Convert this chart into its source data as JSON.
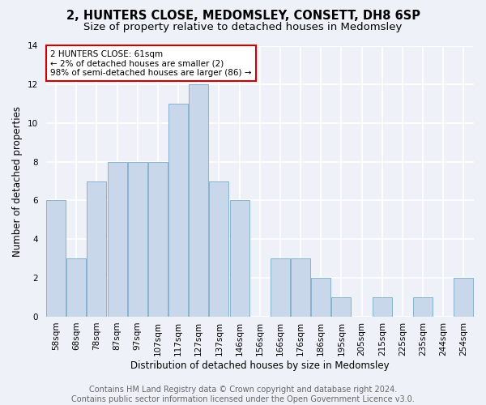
{
  "title": "2, HUNTERS CLOSE, MEDOMSLEY, CONSETT, DH8 6SP",
  "subtitle": "Size of property relative to detached houses in Medomsley",
  "xlabel": "Distribution of detached houses by size in Medomsley",
  "ylabel": "Number of detached properties",
  "bar_labels": [
    "58sqm",
    "68sqm",
    "78sqm",
    "87sqm",
    "97sqm",
    "107sqm",
    "117sqm",
    "127sqm",
    "137sqm",
    "146sqm",
    "156sqm",
    "166sqm",
    "176sqm",
    "186sqm",
    "195sqm",
    "205sqm",
    "215sqm",
    "225sqm",
    "235sqm",
    "244sqm",
    "254sqm"
  ],
  "bar_values": [
    6,
    3,
    7,
    8,
    8,
    8,
    11,
    12,
    7,
    6,
    0,
    3,
    3,
    2,
    1,
    0,
    1,
    0,
    1,
    0,
    2
  ],
  "bar_color": "#c8d8ea",
  "bar_edge_color": "#7aaac8",
  "annotation_box_text": "2 HUNTERS CLOSE: 61sqm\n← 2% of detached houses are smaller (2)\n98% of semi-detached houses are larger (86) →",
  "annotation_box_color": "#ffffff",
  "annotation_box_edge_color": "#cc0000",
  "footer_text": "Contains HM Land Registry data © Crown copyright and database right 2024.\nContains public sector information licensed under the Open Government Licence v3.0.",
  "ylim": [
    0,
    14
  ],
  "yticks": [
    0,
    2,
    4,
    6,
    8,
    10,
    12,
    14
  ],
  "background_color": "#eef2f8",
  "grid_color": "#ffffff",
  "title_fontsize": 10.5,
  "subtitle_fontsize": 9.5,
  "axis_label_fontsize": 8.5,
  "tick_fontsize": 7.5,
  "footer_fontsize": 7,
  "annotation_fontsize": 7.5
}
